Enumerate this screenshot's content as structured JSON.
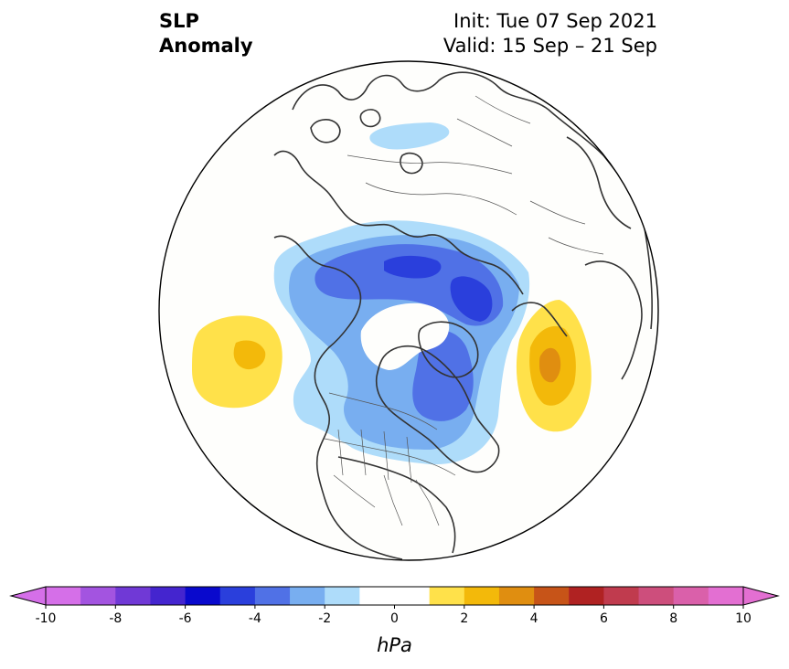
{
  "title": {
    "left_line1": "SLP",
    "left_line2": "Anomaly",
    "init": "Init: Tue 07 Sep 2021",
    "valid": "Valid: 15 Sep – 21 Sep"
  },
  "colorbar": {
    "unit": "hPa",
    "min": -10,
    "max": 10,
    "step": 1,
    "extend": "both",
    "tick_labels": [
      "-10",
      "-8",
      "-6",
      "-4",
      "-2",
      "0",
      "2",
      "4",
      "6",
      "8",
      "10"
    ],
    "colors": [
      "#d56fe8",
      "#a354e0",
      "#7039d6",
      "#4425cf",
      "#0909cd",
      "#2a3fdc",
      "#5071e6",
      "#78aef0",
      "#aedcfa",
      "#ffffff",
      "#ffffff",
      "#ffe14a",
      "#f3b90a",
      "#e08e10",
      "#c75418",
      "#b02222",
      "#c03b4e",
      "#cd4e7c",
      "#da60aa",
      "#e36fd2"
    ],
    "under_color": "#d56fe8",
    "over_color": "#e36fd2"
  },
  "map": {
    "projection": "north-polar-stereographic",
    "background": "#fefefc",
    "coastline_color": "#333333"
  }
}
